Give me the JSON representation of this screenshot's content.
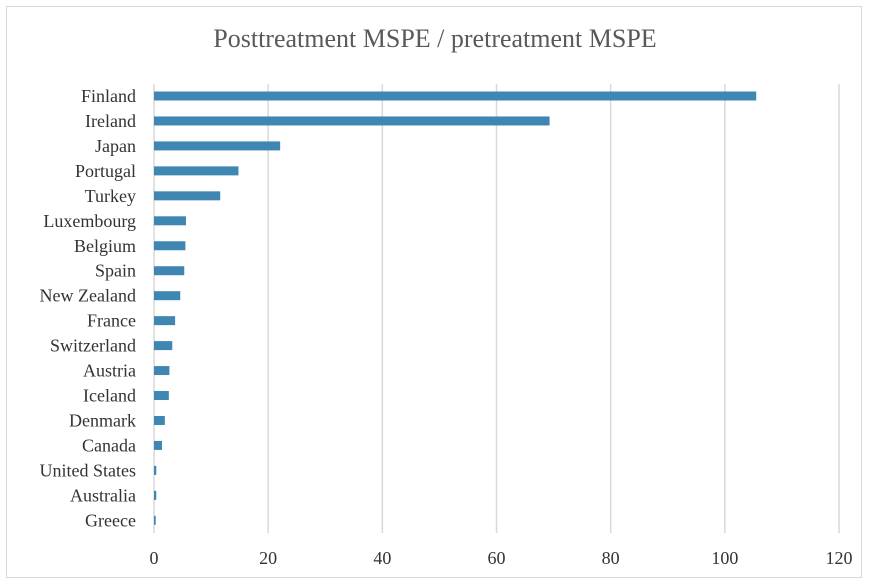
{
  "chart_data": {
    "type": "bar",
    "orientation": "horizontal",
    "title": "Posttreatment MSPE / pretreatment MSPE",
    "xlabel": "",
    "ylabel": "",
    "categories": [
      "Finland",
      "Ireland",
      "Japan",
      "Portugal",
      "Turkey",
      "Luxembourg",
      "Belgium",
      "Spain",
      "New Zealand",
      "France",
      "Switzerland",
      "Austria",
      "Iceland",
      "Denmark",
      "Canada",
      "United States",
      "Australia",
      "Greece"
    ],
    "values": [
      105.5,
      69.3,
      22.1,
      14.8,
      11.6,
      5.6,
      5.5,
      5.3,
      4.6,
      3.7,
      3.2,
      2.7,
      2.6,
      1.9,
      1.4,
      0.4,
      0.4,
      0.3
    ],
    "xlim": [
      0,
      120
    ],
    "xticks": [
      "0",
      "20",
      "40",
      "60",
      "80",
      "100",
      "120"
    ],
    "grid": true,
    "legend": "none",
    "bar_color": "#3f87b2",
    "grid_color": "#d9d9d9"
  }
}
